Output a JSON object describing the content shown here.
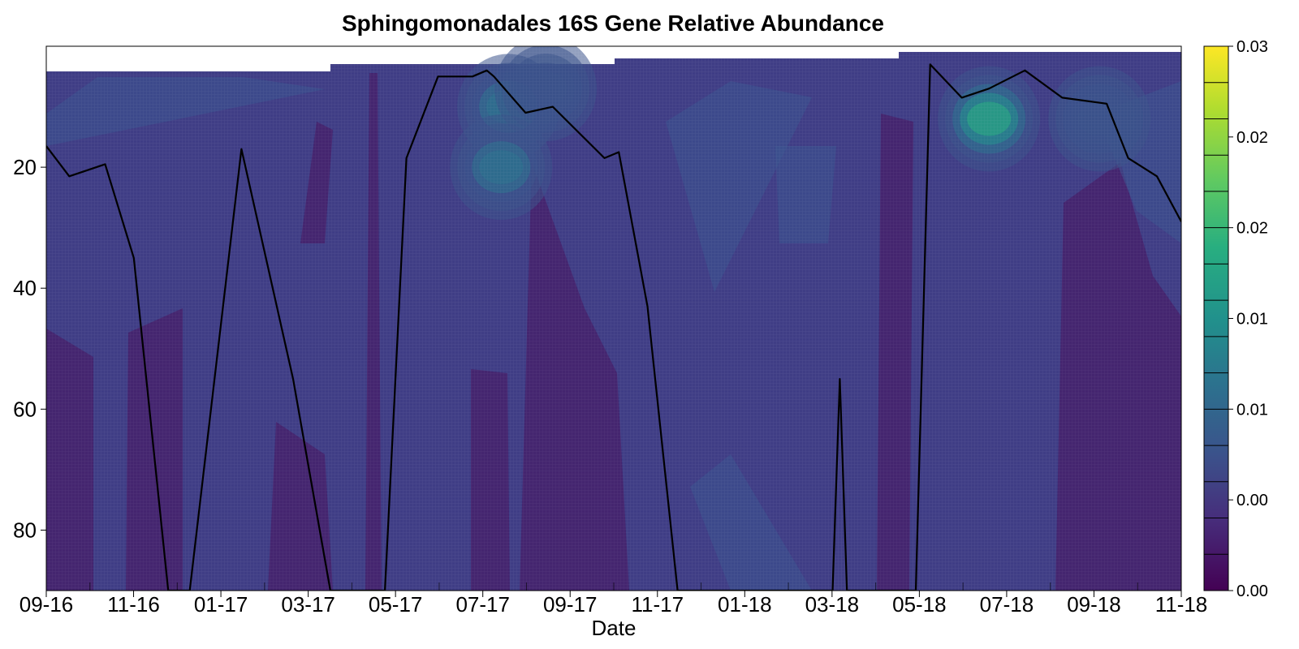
{
  "chart_data": {
    "type": "heatmap",
    "title": "Sphingomonadales 16S Gene Relative Abundance",
    "xlabel": "Date",
    "ylabel": "",
    "x_ticks": [
      "09-16",
      "11-16",
      "01-17",
      "03-17",
      "05-17",
      "07-17",
      "09-17",
      "11-17",
      "01-18",
      "03-18",
      "05-18",
      "07-18",
      "09-18",
      "11-18"
    ],
    "y_ticks": [
      20,
      40,
      60,
      80
    ],
    "ylim": [
      90,
      0
    ],
    "y_inverted": true,
    "colorbar": {
      "colormap": "viridis",
      "range": [
        0,
        0.03
      ],
      "tick_labels": [
        "0.00",
        "0.00",
        "0.01",
        "0.01",
        "0.02",
        "0.02",
        "0.03"
      ],
      "levels": 15
    },
    "profile_line": {
      "x": [
        "2016-09-01",
        "2016-09-17",
        "2016-10-12",
        "2016-11-01",
        "2016-11-25",
        "2016-12-10",
        "2017-01-15",
        "2017-02-20",
        "2017-03-18",
        "2017-04-25",
        "2017-05-10",
        "2017-06-01",
        "2017-06-25",
        "2017-07-05",
        "2017-07-10",
        "2017-08-01",
        "2017-08-20",
        "2017-09-25",
        "2017-10-05",
        "2017-10-25",
        "2017-11-15",
        "2018-03-03",
        "2018-03-08",
        "2018-03-13",
        "2018-04-30",
        "2018-05-10",
        "2018-06-01",
        "2018-06-20",
        "2018-07-15",
        "2018-08-10",
        "2018-09-10",
        "2018-09-25",
        "2018-10-15",
        "2018-11-01"
      ],
      "y": [
        16.5,
        21.5,
        19.5,
        35,
        90,
        90,
        17,
        55,
        90,
        90,
        18.5,
        5,
        5,
        4,
        5,
        11,
        10,
        18.5,
        17.5,
        43,
        90,
        90,
        55,
        90,
        90,
        3,
        8.5,
        7,
        4,
        8.5,
        9.5,
        18.5,
        21.5,
        29
      ]
    },
    "hotspots": [
      {
        "date": "2018-06-20",
        "depth": 12,
        "value": 0.022
      },
      {
        "date": "2017-07-20",
        "depth": 10,
        "value": 0.012
      },
      {
        "date": "2017-07-15",
        "depth": 20,
        "value": 0.013
      },
      {
        "date": "2017-08-15",
        "depth": 7,
        "value": 0.008
      },
      {
        "date": "2018-09-05",
        "depth": 12,
        "value": 0.008
      }
    ]
  }
}
